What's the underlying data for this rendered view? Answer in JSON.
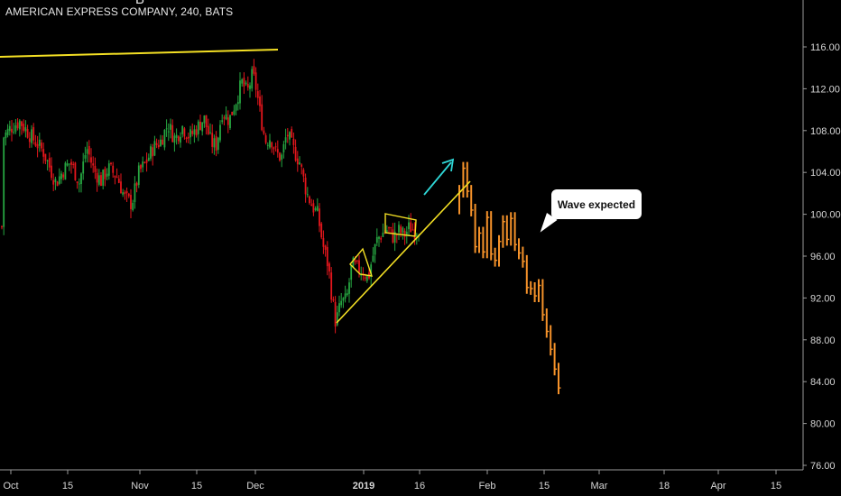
{
  "header": {
    "symbol_title": "AMERICAN EXPRESS COMPANY, 240, BATS",
    "letter": "B"
  },
  "annotation": {
    "text": "Wave expected"
  },
  "colors": {
    "background": "#000000",
    "up_candle": "#26a641",
    "down_candle": "#e5161c",
    "projection": "#f5922a",
    "trendline": "#f4e024",
    "arrow": "#2fd7d7",
    "axis": "#9a9a9a"
  },
  "chart_data": {
    "type": "candlestick",
    "title": "AMERICAN EXPRESS COMPANY, 240, BATS",
    "ylim": [
      75.5,
      119.5
    ],
    "y_ticks": [
      "76.00",
      "80.00",
      "84.00",
      "88.00",
      "92.00",
      "96.00",
      "100.00",
      "104.00",
      "108.00",
      "112.00",
      "116.00"
    ],
    "x_ticks": [
      "Oct",
      "15",
      "Nov",
      "15",
      "Dec",
      "2019",
      "16",
      "Feb",
      "15",
      "Mar",
      "18",
      "Apr",
      "15"
    ],
    "grid": false,
    "overlays": [
      {
        "type": "trendline",
        "note": "horizontal resistance",
        "from": {
          "x": "Oct",
          "y": 115.2
        },
        "to": {
          "x": "Dec",
          "y": 115.8
        }
      },
      {
        "type": "trendline",
        "note": "rising support",
        "from": {
          "x": "Dec 24",
          "y": 89.2
        },
        "to": {
          "x": "Jan 30",
          "y": 102.6
        }
      },
      {
        "type": "arrow",
        "from": {
          "x": "Jan 22",
          "y": 100.4
        },
        "to": {
          "x": "Jan 30",
          "y": 104.4
        }
      }
    ],
    "projection_series": {
      "name": "Wave expected",
      "values_approx": [
        102.2,
        104.4,
        102.2,
        100.4,
        96.9,
        98.2,
        96.4,
        99.7,
        96.2,
        95.6,
        97.4,
        99.3,
        97.6,
        99.6,
        97.1,
        96.3,
        95.5,
        93.0,
        92.9,
        92.2,
        93.2,
        90.4,
        88.8,
        87.1,
        85.2,
        83.4
      ]
    }
  }
}
